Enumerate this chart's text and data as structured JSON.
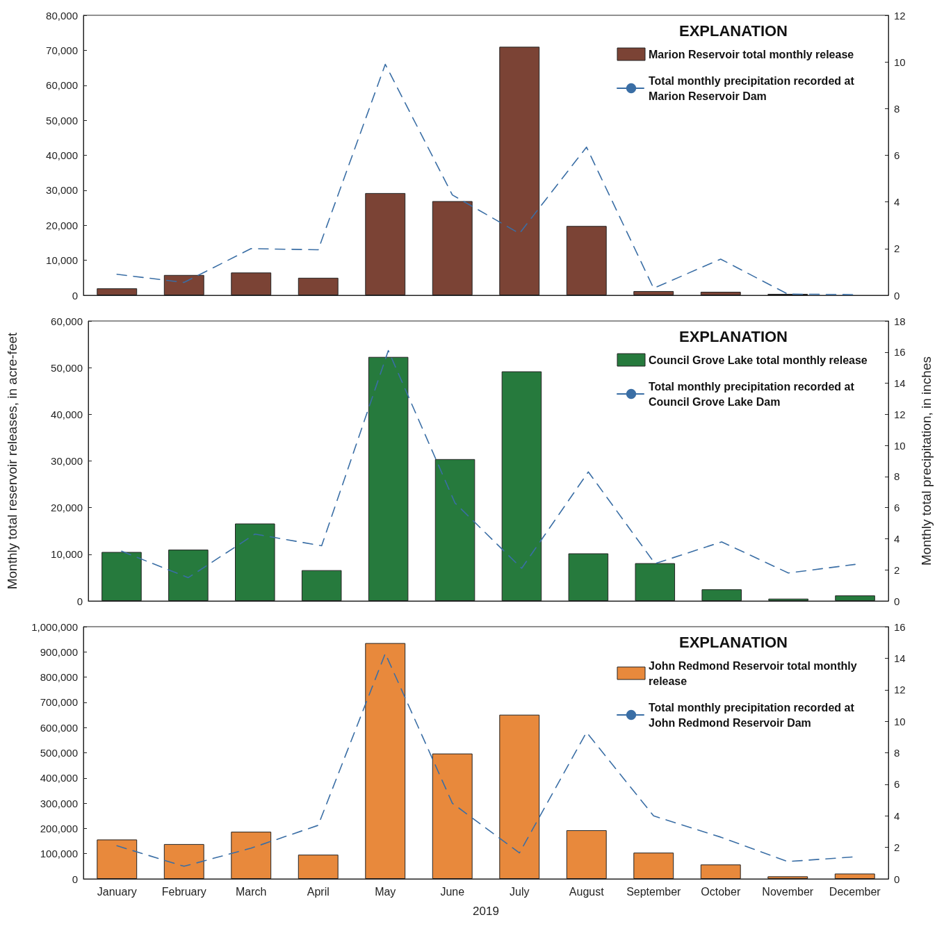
{
  "chart_data": [
    {
      "type": "bar",
      "categories": [
        null,
        null,
        null,
        null,
        null,
        null,
        null,
        null,
        null,
        null,
        null,
        null
      ],
      "legend_title": "EXPLANATION",
      "legend": "top right",
      "grid": false,
      "tick_labels": "y",
      "ylim": [
        0,
        80000
      ],
      "yticks": [
        {
          "value": 0,
          "label": "0"
        },
        {
          "value": 10000,
          "label": "10,000"
        },
        {
          "value": 20000,
          "label": "20,000"
        },
        {
          "value": 30000,
          "label": "30,000"
        },
        {
          "value": 40000,
          "label": "40,000"
        },
        {
          "value": 50000,
          "label": "50,000"
        },
        {
          "value": 60000,
          "label": "60,000"
        },
        {
          "value": 70000,
          "label": "70,000"
        },
        {
          "value": 80000,
          "label": "80,000"
        }
      ],
      "y2lim": [
        0,
        12
      ],
      "y2ticks": [
        0,
        2,
        4,
        6,
        8,
        10,
        12
      ],
      "series": [
        {
          "name": "Marion Reservoir total monthly release",
          "color": "#7b4335",
          "values": [
            2000,
            5800,
            6500,
            5000,
            29200,
            26900,
            71000,
            19800,
            1200,
            1000,
            400,
            null
          ]
        },
        {
          "type": "line",
          "axis": "y2",
          "name": "Total monthly precipitation recorded at Marion Reservoir Dam",
          "color": "#3a6ea5",
          "line_style": "dashed",
          "marker": "none",
          "values": [
            0.9,
            0.55,
            2.0,
            1.95,
            9.9,
            4.3,
            2.65,
            6.35,
            0.3,
            1.55,
            0.05,
            0.03
          ]
        }
      ]
    },
    {
      "type": "bar",
      "categories": [
        null,
        null,
        null,
        null,
        null,
        null,
        null,
        null,
        null,
        null,
        null,
        null
      ],
      "ylabel": "Monthly total reservoir releases, in acre-feet",
      "y2label": "Monthly total precipitation, in inches",
      "legend_title": "EXPLANATION",
      "legend": "top right",
      "grid": false,
      "tick_labels": "y",
      "ylim": [
        0,
        60000
      ],
      "yticks": [
        {
          "value": 0,
          "label": "0"
        },
        {
          "value": 10000,
          "label": "10,000"
        },
        {
          "value": 20000,
          "label": "20,000"
        },
        {
          "value": 30000,
          "label": "30,000"
        },
        {
          "value": 40000,
          "label": "40,000"
        },
        {
          "value": 50000,
          "label": "50,000"
        },
        {
          "value": 60000,
          "label": "60,000"
        }
      ],
      "y2lim": [
        0,
        18
      ],
      "y2ticks": [
        0,
        2,
        4,
        6,
        8,
        10,
        12,
        14,
        16,
        18
      ],
      "series": [
        {
          "name": "Council Grove Lake total monthly release",
          "color": "#267a3d",
          "values": [
            10500,
            11000,
            16600,
            6600,
            52300,
            30400,
            49200,
            10200,
            8100,
            2500,
            500,
            1200
          ]
        },
        {
          "type": "line",
          "axis": "y2",
          "name": "Total monthly precipitation recorded at Council Grove Lake Dam",
          "color": "#3a6ea5",
          "line_style": "dashed",
          "marker": "none",
          "values": [
            3.2,
            1.5,
            4.3,
            3.55,
            16.1,
            6.3,
            2.1,
            8.3,
            2.4,
            3.8,
            1.8,
            2.35
          ]
        }
      ]
    },
    {
      "type": "bar",
      "categories": [
        "January",
        "February",
        "March",
        "April",
        "May",
        "June",
        "July",
        "August",
        "September",
        "October",
        "November",
        "December"
      ],
      "xlabel": "2019",
      "legend_title": "EXPLANATION",
      "legend": "top right",
      "grid": false,
      "ylim": [
        0,
        1000000
      ],
      "yticks": [
        {
          "value": 0,
          "label": "0"
        },
        {
          "value": 100000,
          "label": "100,000"
        },
        {
          "value": 200000,
          "label": "200,000"
        },
        {
          "value": 300000,
          "label": "300,000"
        },
        {
          "value": 400000,
          "label": "400,000"
        },
        {
          "value": 500000,
          "label": "500,000"
        },
        {
          "value": 600000,
          "label": "600,000"
        },
        {
          "value": 700000,
          "label": "700,000"
        },
        {
          "value": 800000,
          "label": "800,000"
        },
        {
          "value": 900000,
          "label": "900,000"
        },
        {
          "value": 1000000,
          "label": "1,000,000"
        }
      ],
      "y2lim": [
        0,
        16
      ],
      "y2ticks": [
        0,
        2,
        4,
        6,
        8,
        10,
        12,
        14,
        16
      ],
      "series": [
        {
          "name": "John Redmond Reservoir total monthly release",
          "color": "#e8893c",
          "values": [
            156000,
            138000,
            187000,
            96000,
            935000,
            497000,
            651000,
            193000,
            104000,
            57000,
            10000,
            21000
          ]
        },
        {
          "type": "line",
          "axis": "y2",
          "name": "Total monthly precipitation recorded at John Redmond Reservoir Dam",
          "color": "#3a6ea5",
          "line_style": "dashed",
          "marker": "none",
          "values": [
            2.1,
            0.8,
            1.95,
            3.4,
            14.3,
            4.8,
            1.65,
            9.3,
            4.0,
            2.65,
            1.1,
            1.4
          ]
        }
      ]
    }
  ]
}
